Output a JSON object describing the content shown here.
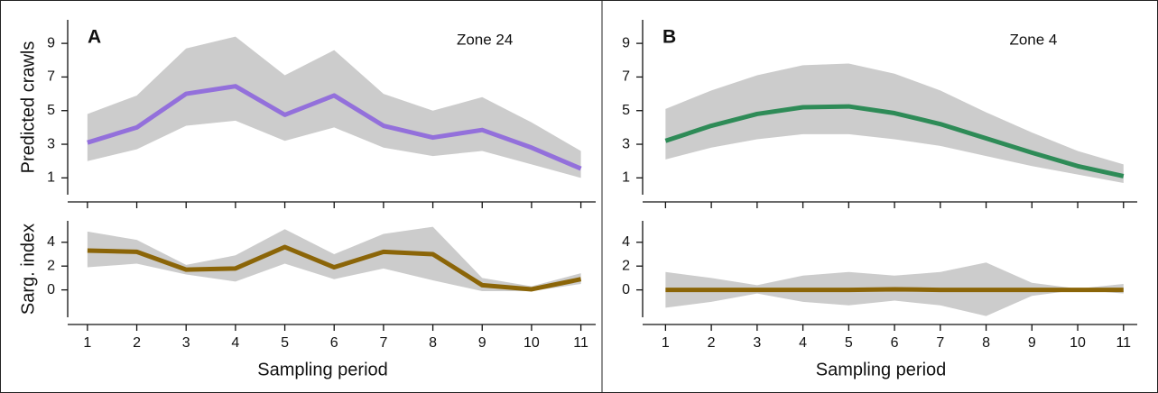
{
  "chart_data": [
    {
      "type": "line",
      "panel": "A",
      "note": "Zone 24",
      "ylabel": "Predicted crawls",
      "x": [
        1,
        2,
        3,
        4,
        5,
        6,
        7,
        8,
        9,
        10,
        11
      ],
      "xlim": [
        0.6,
        11.3
      ],
      "ylim": [
        0,
        10.4
      ],
      "yticks": [
        1,
        3,
        5,
        7,
        9
      ],
      "color": "#9370db",
      "band_color": "#cccccc",
      "values": [
        3.1,
        4.0,
        6.0,
        6.45,
        4.75,
        5.9,
        4.1,
        3.4,
        3.85,
        2.8,
        1.55
      ],
      "upper": [
        4.8,
        5.9,
        8.7,
        9.4,
        7.1,
        8.6,
        6.0,
        5.0,
        5.8,
        4.3,
        2.6
      ],
      "lower": [
        2.0,
        2.7,
        4.1,
        4.4,
        3.2,
        4.0,
        2.8,
        2.3,
        2.6,
        1.8,
        1.0
      ]
    },
    {
      "type": "line",
      "ylabel": "Sarg. index",
      "xlabel": "Sampling period",
      "x": [
        1,
        2,
        3,
        4,
        5,
        6,
        7,
        8,
        9,
        10,
        11
      ],
      "xlim": [
        0.6,
        11.3
      ],
      "xticks": [
        1,
        2,
        3,
        4,
        5,
        6,
        7,
        8,
        9,
        10,
        11
      ],
      "ylim": [
        -2.3,
        5.8
      ],
      "yticks": [
        0,
        2,
        4
      ],
      "color": "#8b6508",
      "band_color": "#cccccc",
      "values": [
        3.3,
        3.2,
        1.7,
        1.8,
        3.6,
        1.9,
        3.2,
        3.0,
        0.4,
        0.05,
        0.9
      ],
      "upper": [
        4.9,
        4.2,
        2.1,
        2.9,
        5.1,
        3.0,
        4.7,
        5.3,
        1.0,
        0.3,
        1.4
      ],
      "lower": [
        1.9,
        2.2,
        1.3,
        0.7,
        2.2,
        0.9,
        1.8,
        0.8,
        -0.1,
        -0.1,
        0.5
      ]
    },
    {
      "type": "line",
      "panel": "B",
      "note": "Zone 4",
      "x": [
        1,
        2,
        3,
        4,
        5,
        6,
        7,
        8,
        9,
        10,
        11
      ],
      "xlim": [
        0.5,
        11.3
      ],
      "ylim": [
        0,
        10.4
      ],
      "yticks": [
        1,
        3,
        5,
        7,
        9
      ],
      "color": "#2e8b57",
      "band_color": "#cccccc",
      "values": [
        3.2,
        4.1,
        4.8,
        5.2,
        5.25,
        4.85,
        4.2,
        3.35,
        2.5,
        1.7,
        1.1
      ],
      "upper": [
        5.1,
        6.2,
        7.1,
        7.7,
        7.8,
        7.2,
        6.2,
        4.9,
        3.7,
        2.6,
        1.8
      ],
      "lower": [
        2.1,
        2.8,
        3.3,
        3.6,
        3.6,
        3.3,
        2.9,
        2.3,
        1.7,
        1.2,
        0.7
      ]
    },
    {
      "type": "line",
      "xlabel": "Sampling period",
      "x": [
        1,
        2,
        3,
        4,
        5,
        6,
        7,
        8,
        9,
        10,
        11
      ],
      "xlim": [
        0.5,
        11.3
      ],
      "xticks": [
        1,
        2,
        3,
        4,
        5,
        6,
        7,
        8,
        9,
        10,
        11
      ],
      "ylim": [
        -2.3,
        5.8
      ],
      "yticks": [
        0,
        2,
        4
      ],
      "color": "#8b6508",
      "band_color": "#cccccc",
      "values": [
        0,
        0,
        0,
        0,
        0,
        0.05,
        0,
        0,
        0,
        0,
        0
      ],
      "upper": [
        1.5,
        1.0,
        0.4,
        1.2,
        1.5,
        1.2,
        1.5,
        2.3,
        0.6,
        0.1,
        0.5
      ],
      "lower": [
        -1.5,
        -1.0,
        -0.3,
        -1.0,
        -1.3,
        -0.9,
        -1.3,
        -2.2,
        -0.5,
        0,
        -0.3
      ]
    }
  ]
}
